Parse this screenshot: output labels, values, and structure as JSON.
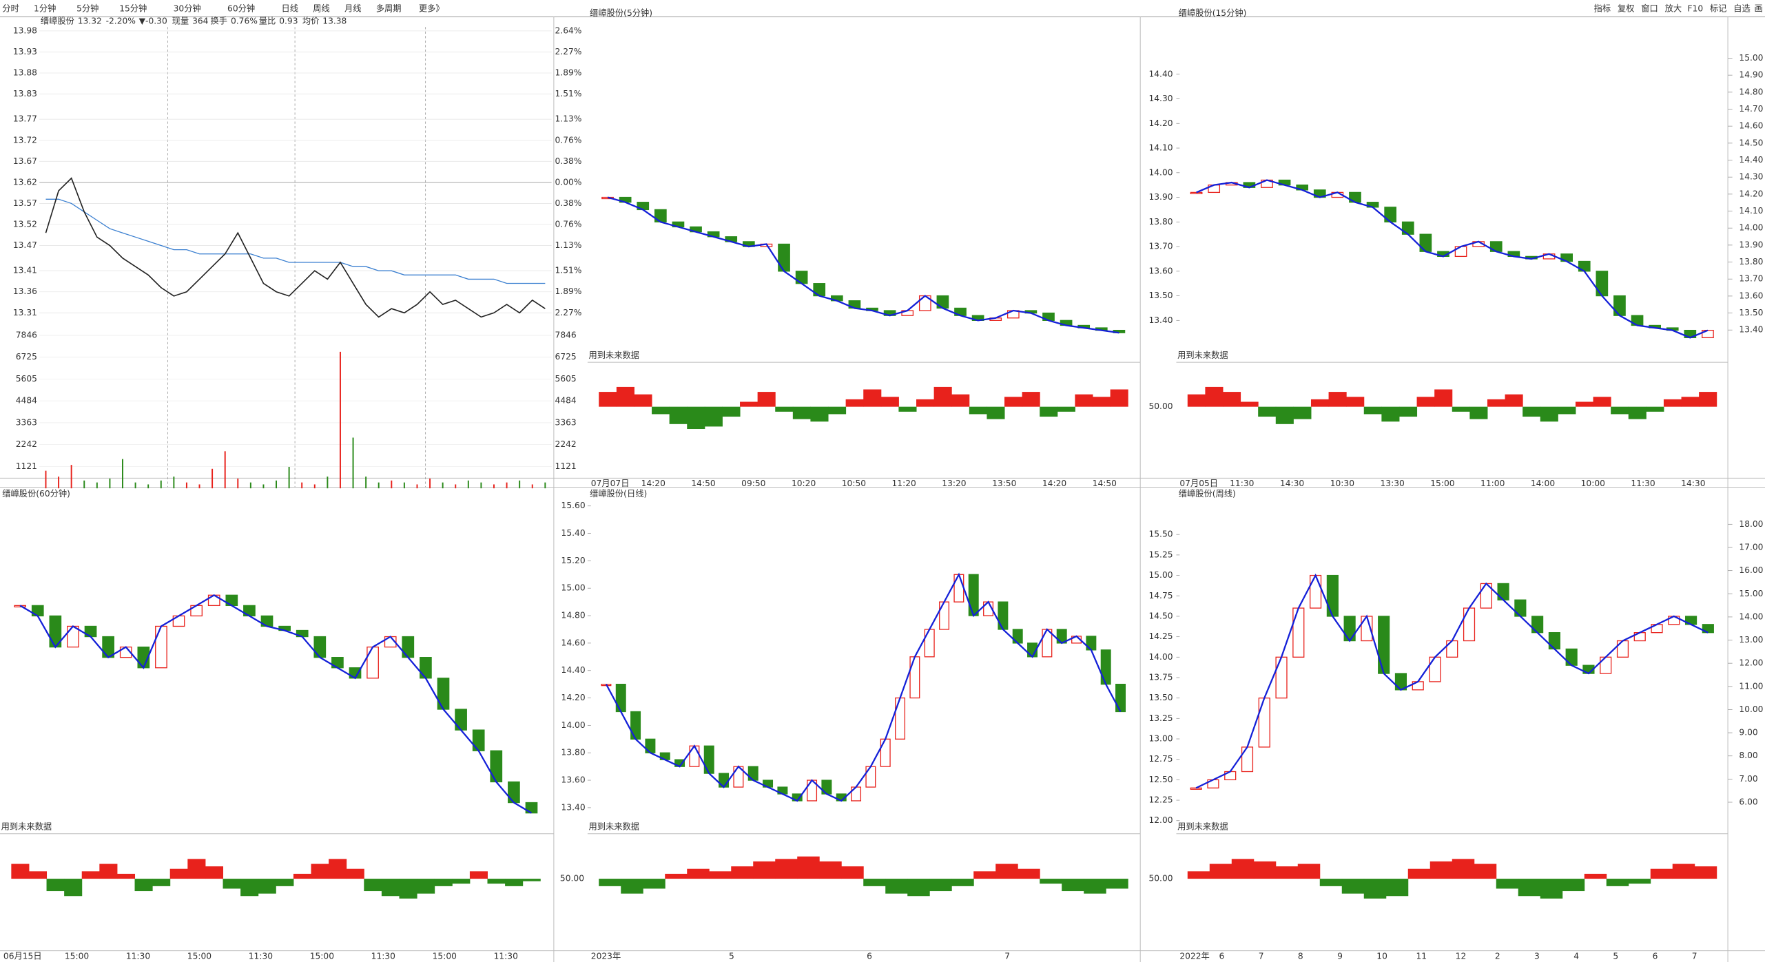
{
  "menu": [
    "分时",
    "1分钟",
    "5分钟",
    "15分钟",
    "30分钟",
    "60分钟",
    "日线",
    "周线",
    "月线",
    "多周期",
    "更多》"
  ],
  "toolbar": [
    "指标",
    "复权",
    "窗口",
    "放大",
    "F10",
    "标记",
    "自选",
    "画"
  ],
  "future_note": "用到未来数据",
  "intraday": {
    "header": [
      "缙嶂股份",
      "13.32",
      "-2.20%",
      "▼-0.30",
      "现量",
      "364",
      "换手",
      "0.76%",
      "量比",
      "0.93",
      "均价",
      "13.38"
    ],
    "ylim": [
      13.27,
      14.0
    ],
    "yticks": [
      13.98,
      13.93,
      13.88,
      13.83,
      13.77,
      13.72,
      13.67,
      13.62,
      13.57,
      13.52,
      13.47,
      13.41,
      13.36,
      13.31
    ],
    "pct_labels": [
      "2.64%",
      "2.27%",
      "1.89%",
      "1.51%",
      "1.13%",
      "0.76%",
      "0.38%",
      "0.00%",
      "0.38%",
      "0.76%",
      "1.13%",
      "1.51%",
      "1.89%",
      "2.27%"
    ],
    "vol_ylim": [
      0,
      7846
    ],
    "vol_ticks": [
      7846,
      6725,
      5605,
      4484,
      3363,
      2242,
      1121
    ],
    "price": [
      13.5,
      13.6,
      13.63,
      13.55,
      13.49,
      13.47,
      13.44,
      13.42,
      13.4,
      13.37,
      13.35,
      13.36,
      13.39,
      13.42,
      13.45,
      13.5,
      13.44,
      13.38,
      13.36,
      13.35,
      13.38,
      13.41,
      13.39,
      13.43,
      13.38,
      13.33,
      13.3,
      13.32,
      13.31,
      13.33,
      13.36,
      13.33,
      13.34,
      13.32,
      13.3,
      13.31,
      13.33,
      13.31,
      13.34,
      13.32
    ],
    "avg": [
      13.58,
      13.58,
      13.57,
      13.55,
      13.53,
      13.51,
      13.5,
      13.49,
      13.48,
      13.47,
      13.46,
      13.46,
      13.45,
      13.45,
      13.45,
      13.45,
      13.45,
      13.44,
      13.44,
      13.43,
      13.43,
      13.43,
      13.43,
      13.43,
      13.42,
      13.42,
      13.41,
      13.41,
      13.4,
      13.4,
      13.4,
      13.4,
      13.4,
      13.39,
      13.39,
      13.39,
      13.38,
      13.38,
      13.38,
      13.38
    ],
    "volume": [
      900,
      600,
      1200,
      400,
      300,
      500,
      1500,
      300,
      200,
      400,
      600,
      300,
      200,
      1000,
      1900,
      500,
      300,
      200,
      400,
      1100,
      300,
      200,
      600,
      7000,
      2600,
      600,
      300,
      400,
      300,
      200,
      500,
      300,
      200,
      400,
      300,
      200,
      300,
      400,
      200,
      300
    ]
  },
  "panels": [
    {
      "title": "缙嶂股份(5分钟)",
      "ylim": [
        13.23,
        14.61
      ],
      "closes": [
        13.9,
        13.88,
        13.85,
        13.8,
        13.78,
        13.76,
        13.74,
        13.72,
        13.7,
        13.71,
        13.6,
        13.55,
        13.5,
        13.48,
        13.45,
        13.44,
        13.42,
        13.44,
        13.5,
        13.45,
        13.42,
        13.4,
        13.41,
        13.44,
        13.43,
        13.4,
        13.38,
        13.37,
        13.36,
        13.35
      ],
      "osc": [
        0.6,
        0.8,
        0.5,
        -0.3,
        -0.7,
        -0.9,
        -0.8,
        -0.4,
        0.2,
        0.6,
        -0.2,
        -0.5,
        -0.6,
        -0.3,
        0.3,
        0.7,
        0.4,
        -0.2,
        0.3,
        0.8,
        0.5,
        -0.3,
        -0.5,
        0.4,
        0.6,
        -0.4,
        -0.2,
        0.5,
        0.4,
        0.7
      ],
      "xlabels": [
        "07月07日",
        "14:20",
        "14:50",
        "09:50",
        "10:20",
        "10:50",
        "11:20",
        "13:20",
        "13:50",
        "14:20",
        "14:50"
      ]
    },
    {
      "title": "缙嶂股份(15分钟)",
      "ylim": [
        13.23,
        14.61
      ],
      "yticks": [
        {
          "value": 14.4,
          "label": "14.40"
        },
        {
          "value": 14.3,
          "label": "14.30"
        },
        {
          "value": 14.2,
          "label": "14.20"
        },
        {
          "value": 14.1,
          "label": "14.10"
        },
        {
          "value": 14,
          "label": "14.00"
        },
        {
          "value": 13.9,
          "label": "13.90"
        },
        {
          "value": 13.8,
          "label": "13.80"
        },
        {
          "value": 13.7,
          "label": "13.70"
        },
        {
          "value": 13.6,
          "label": "13.60"
        },
        {
          "value": 13.5,
          "label": "13.50"
        },
        {
          "value": 13.4,
          "label": "13.40"
        }
      ],
      "y2lim": [
        13.21,
        15.21
      ],
      "y2ticks": [
        {
          "value": 15,
          "label": "15.00"
        },
        {
          "value": 14.9,
          "label": "14.90"
        },
        {
          "value": 14.8,
          "label": "14.80"
        },
        {
          "value": 14.7,
          "label": "14.70"
        },
        {
          "value": 14.6,
          "label": "14.60"
        },
        {
          "value": 14.5,
          "label": "14.50"
        },
        {
          "value": 14.4,
          "label": "14.40"
        },
        {
          "value": 14.3,
          "label": "14.30"
        },
        {
          "value": 14.2,
          "label": "14.20"
        },
        {
          "value": 14.1,
          "label": "14.10"
        },
        {
          "value": 14,
          "label": "14.00"
        },
        {
          "value": 13.9,
          "label": "13.90"
        },
        {
          "value": 13.8,
          "label": "13.80"
        },
        {
          "value": 13.7,
          "label": "13.70"
        },
        {
          "value": 13.6,
          "label": "13.60"
        },
        {
          "value": 13.5,
          "label": "13.50"
        },
        {
          "value": 13.4,
          "label": "13.40"
        }
      ],
      "closes": [
        13.92,
        13.95,
        13.96,
        13.94,
        13.97,
        13.95,
        13.93,
        13.9,
        13.92,
        13.88,
        13.86,
        13.8,
        13.75,
        13.68,
        13.66,
        13.7,
        13.72,
        13.68,
        13.66,
        13.65,
        13.67,
        13.64,
        13.6,
        13.5,
        13.42,
        13.38,
        13.37,
        13.36,
        13.33,
        13.36
      ],
      "osc": [
        0.5,
        0.8,
        0.6,
        0.2,
        -0.4,
        -0.7,
        -0.5,
        0.3,
        0.6,
        0.4,
        -0.3,
        -0.6,
        -0.4,
        0.4,
        0.7,
        -0.2,
        -0.5,
        0.3,
        0.5,
        -0.4,
        -0.6,
        -0.3,
        0.2,
        0.4,
        -0.3,
        -0.5,
        -0.2,
        0.3,
        0.4,
        0.6
      ],
      "ind_label": "50.00",
      "xlabels": [
        "07月05日",
        "11:30",
        "14:30",
        "10:30",
        "13:30",
        "15:00",
        "11:00",
        "14:00",
        "10:00",
        "11:30",
        "14:30"
      ]
    },
    {
      "title": "缙嶂股份(60分钟)",
      "ylim": [
        13.2,
        14.8
      ],
      "closes": [
        14.3,
        14.25,
        14.1,
        14.2,
        14.15,
        14.05,
        14.1,
        14.0,
        14.2,
        14.25,
        14.3,
        14.35,
        14.3,
        14.25,
        14.2,
        14.18,
        14.15,
        14.05,
        14.0,
        13.95,
        14.1,
        14.15,
        14.05,
        13.95,
        13.8,
        13.7,
        13.6,
        13.45,
        13.35,
        13.3
      ],
      "osc": [
        0.6,
        0.3,
        -0.5,
        -0.7,
        0.3,
        0.6,
        0.2,
        -0.5,
        -0.3,
        0.4,
        0.8,
        0.5,
        -0.4,
        -0.7,
        -0.6,
        -0.3,
        0.2,
        0.6,
        0.8,
        0.4,
        -0.5,
        -0.7,
        -0.8,
        -0.6,
        -0.3,
        -0.2,
        0.3,
        -0.2,
        -0.3,
        -0.1
      ],
      "xlabels": [
        "06月15日",
        "15:00",
        "11:30",
        "15:00",
        "11:30",
        "15:00",
        "11:30",
        "15:00",
        "11:30"
      ]
    },
    {
      "title": "缙嶂股份(日线)",
      "ylim": [
        13.21,
        15.63
      ],
      "yticks": [
        {
          "value": 15.6,
          "label": "15.60"
        },
        {
          "value": 15.4,
          "label": "15.40"
        },
        {
          "value": 15.2,
          "label": "15.20"
        },
        {
          "value": 15,
          "label": "15.00"
        },
        {
          "value": 14.8,
          "label": "14.80"
        },
        {
          "value": 14.6,
          "label": "14.60"
        },
        {
          "value": 14.4,
          "label": "14.40"
        },
        {
          "value": 14.2,
          "label": "14.20"
        },
        {
          "value": 14,
          "label": "14.00"
        },
        {
          "value": 13.8,
          "label": "13.80"
        },
        {
          "value": 13.6,
          "label": "13.60"
        },
        {
          "value": 13.4,
          "label": "13.40"
        }
      ],
      "closes": [
        14.3,
        14.1,
        13.9,
        13.8,
        13.75,
        13.7,
        13.85,
        13.65,
        13.55,
        13.7,
        13.6,
        13.55,
        13.5,
        13.45,
        13.6,
        13.5,
        13.45,
        13.55,
        13.7,
        13.9,
        14.2,
        14.5,
        14.7,
        14.9,
        15.1,
        14.8,
        14.9,
        14.7,
        14.6,
        14.5,
        14.7,
        14.6,
        14.65,
        14.55,
        14.3,
        14.1
      ],
      "osc": [
        -0.3,
        -0.6,
        -0.4,
        0.2,
        0.4,
        0.3,
        0.5,
        0.7,
        0.8,
        0.9,
        0.7,
        0.5,
        -0.3,
        -0.6,
        -0.7,
        -0.5,
        -0.3,
        0.3,
        0.6,
        0.4,
        -0.2,
        -0.5,
        -0.6,
        -0.4
      ],
      "ind_label": "50.00",
      "xlabels": [
        "2023年",
        "5",
        "6",
        "7"
      ]
    },
    {
      "title": "缙嶂股份(周线)",
      "ylim": [
        11.84,
        15.9
      ],
      "yticks": [
        {
          "value": 15.5,
          "label": "15.50"
        },
        15.25,
        {
          "value": 15,
          "label": "15.00"
        },
        14.75,
        {
          "value": 14.5,
          "label": "14.50"
        },
        14.25,
        {
          "value": 14,
          "label": "14.00"
        },
        13.75,
        {
          "value": 13.5,
          "label": "13.50"
        },
        13.25,
        {
          "value": 13,
          "label": "13.00"
        },
        12.75,
        {
          "value": 12.5,
          "label": "12.50"
        },
        12.25,
        {
          "value": 12,
          "label": "12.00"
        }
      ],
      "y2lim": [
        4.64,
        18.97
      ],
      "y2ticks": [
        {
          "value": 18,
          "label": "18.00"
        },
        {
          "value": 17,
          "label": "17.00"
        },
        {
          "value": 16,
          "label": "16.00"
        },
        {
          "value": 15,
          "label": "15.00"
        },
        {
          "value": 14,
          "label": "14.00"
        },
        {
          "value": 13,
          "label": "13.00"
        },
        {
          "value": 12,
          "label": "12.00"
        },
        {
          "value": 11,
          "label": "11.00"
        },
        {
          "value": 10,
          "label": "10.00"
        },
        {
          "value": 9,
          "label": "9.00"
        },
        {
          "value": 8,
          "label": "8.00"
        },
        {
          "value": 7,
          "label": "7.00"
        },
        {
          "value": 6,
          "label": "6.00"
        }
      ],
      "closes": [
        12.4,
        12.5,
        12.6,
        12.9,
        13.5,
        14.0,
        14.6,
        15.0,
        14.5,
        14.2,
        14.5,
        13.8,
        13.6,
        13.7,
        14.0,
        14.2,
        14.6,
        14.9,
        14.7,
        14.5,
        14.3,
        14.1,
        13.9,
        13.8,
        14.0,
        14.2,
        14.3,
        14.4,
        14.5,
        14.4,
        14.3
      ],
      "osc": [
        0.3,
        0.6,
        0.8,
        0.7,
        0.5,
        0.6,
        -0.3,
        -0.6,
        -0.8,
        -0.7,
        0.4,
        0.7,
        0.8,
        0.6,
        -0.4,
        -0.7,
        -0.8,
        -0.5,
        0.2,
        -0.3,
        -0.2,
        0.4,
        0.6,
        0.5
      ],
      "ind_label": "50.00",
      "xlabels": [
        "2022年",
        "6",
        "7",
        "8",
        "9",
        "10",
        "11",
        "12",
        "2",
        "3",
        "4",
        "5",
        "6",
        "7"
      ]
    }
  ]
}
